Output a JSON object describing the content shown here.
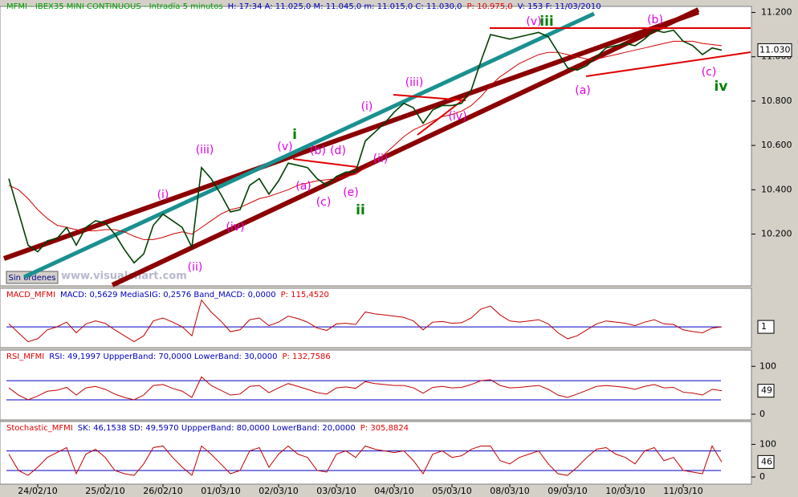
{
  "chart_data": {
    "type": "line",
    "header": [
      {
        "text": "MFMI - IBEX35 MINI CONTINUOUS - Intradía 5 minutos",
        "color": "#00a000"
      },
      {
        "text": "H: 17:34  A: 11.025,0  M: 11.045,0  m: 11.015,0  C: 11.030,0",
        "color": "#0000c0"
      },
      {
        "text": "P: 10.975,0",
        "color": "#e00000"
      },
      {
        "text": "V: 153  F: 11/03/2010",
        "color": "#0000c0"
      }
    ],
    "watermark": "www.visualchart.com",
    "button": "Sin órdenes",
    "last_label": "11.030",
    "categories": [
      null,
      null,
      null,
      "24/02/10",
      null,
      null,
      null,
      null,
      null,
      null,
      "25/02/10",
      null,
      null,
      null,
      null,
      null,
      "26/02/10",
      null,
      null,
      null,
      null,
      null,
      "01/03/10",
      null,
      null,
      null,
      null,
      null,
      "02/03/10",
      null,
      null,
      null,
      null,
      null,
      "03/03/10",
      null,
      null,
      null,
      null,
      null,
      "04/03/10",
      null,
      null,
      null,
      null,
      null,
      "05/03/10",
      null,
      null,
      null,
      null,
      null,
      "08/03/10",
      null,
      null,
      null,
      null,
      null,
      "09/03/10",
      null,
      null,
      null,
      null,
      null,
      "10/03/10",
      null,
      null,
      null,
      null,
      null,
      "11/03/10",
      null,
      null,
      null,
      null
    ],
    "ylim": [
      9970,
      11220
    ],
    "yticks": [
      {
        "value": 10200,
        "label": "10.200"
      },
      {
        "value": 10400,
        "label": "10.400"
      },
      {
        "value": 10600,
        "label": "10.600"
      },
      {
        "value": 10800,
        "label": "10.800"
      },
      {
        "value": 11000,
        "label": "11.000"
      },
      {
        "value": 11200,
        "label": "11.200"
      }
    ],
    "series": [
      {
        "name": "MFMI",
        "color": "#004000",
        "values": [
          10450,
          10300,
          10150,
          10120,
          10170,
          10180,
          10230,
          10150,
          10230,
          10260,
          10250,
          10200,
          10130,
          10070,
          10110,
          10240,
          10290,
          10260,
          10230,
          10140,
          10500,
          10450,
          10380,
          10300,
          10310,
          10420,
          10450,
          10380,
          10440,
          10520,
          10510,
          10500,
          10450,
          10420,
          10460,
          10480,
          10480,
          10620,
          10660,
          10700,
          10750,
          10790,
          10770,
          10700,
          10760,
          10780,
          10780,
          10790,
          10850,
          10980,
          11100,
          11090,
          11080,
          11090,
          11100,
          11110,
          11090,
          11020,
          10950,
          10940,
          10960,
          11000,
          11040,
          11050,
          11060,
          11050,
          11080,
          11120,
          11110,
          11120,
          11070,
          11050,
          11010,
          11040,
          11030
        ]
      },
      {
        "name": "MA",
        "color": "#d00000",
        "values": [
          10420,
          10400,
          10360,
          10310,
          10270,
          10240,
          10230,
          10220,
          10215,
          10215,
          10220,
          10220,
          10210,
          10190,
          10175,
          10175,
          10185,
          10200,
          10210,
          10200,
          10230,
          10260,
          10290,
          10310,
          10320,
          10340,
          10360,
          10370,
          10385,
          10400,
          10420,
          10430,
          10440,
          10445,
          10450,
          10460,
          10470,
          10500,
          10530,
          10560,
          10600,
          10640,
          10670,
          10690,
          10710,
          10730,
          10740,
          10755,
          10780,
          10820,
          10870,
          10910,
          10940,
          10970,
          10990,
          11010,
          11020,
          11020,
          11010,
          11000,
          10990,
          10990,
          11000,
          11010,
          11020,
          11030,
          11040,
          11050,
          11060,
          11070,
          11070,
          11070,
          11060,
          11055,
          11050
        ]
      }
    ],
    "annotations": [
      {
        "text": "(iii)",
        "color": "#e000e0"
      },
      {
        "text": "(i)",
        "color": "#e000e0"
      },
      {
        "text": "(ii)",
        "color": "#e000e0"
      },
      {
        "text": "(iv)",
        "color": "#e000e0"
      },
      {
        "text": "(v)",
        "color": "#e000e0"
      },
      {
        "text": "i",
        "color": "#008000"
      },
      {
        "text": "(b)",
        "color": "#e000e0"
      },
      {
        "text": "(d)",
        "color": "#e000e0"
      },
      {
        "text": "(a)",
        "color": "#e000e0"
      },
      {
        "text": "(c)",
        "color": "#e000e0"
      },
      {
        "text": "(e)",
        "color": "#e000e0"
      },
      {
        "text": "ii",
        "color": "#008000"
      },
      {
        "text": "(i)",
        "color": "#e000e0"
      },
      {
        "text": "(iii)",
        "color": "#e000e0"
      },
      {
        "text": "(ii)",
        "color": "#e000e0"
      },
      {
        "text": "(iv)",
        "color": "#e000e0"
      },
      {
        "text": "(v)",
        "color": "#e000e0"
      },
      {
        "text": "iii",
        "color": "#008000"
      },
      {
        "text": "(a)",
        "color": "#e000e0"
      },
      {
        "text": "(b)",
        "color": "#e000e0"
      },
      {
        "text": "(c)",
        "color": "#e000e0"
      },
      {
        "text": "iv",
        "color": "#008000"
      }
    ],
    "indicators": [
      {
        "header": [
          {
            "text": "MACD_MFMI",
            "color": "#e00000"
          },
          {
            "text": "MACD: 0,5629  MediaSIG: 0,2576  Band_MACD: 0,0000",
            "color": "#0000c0"
          },
          {
            "text": "P: 115,4520",
            "color": "#e00000"
          }
        ],
        "box": "1",
        "color": "#c00000",
        "ylim": [
          -35,
          65
        ],
        "levels": [
          0
        ],
        "yticks": [],
        "values": [
          5,
          -10,
          -25,
          -20,
          -5,
          0,
          8,
          -10,
          5,
          10,
          6,
          -5,
          -15,
          -25,
          -15,
          10,
          15,
          8,
          0,
          -15,
          45,
          25,
          10,
          -8,
          -5,
          12,
          15,
          2,
          8,
          18,
          14,
          8,
          -2,
          -6,
          5,
          6,
          4,
          25,
          22,
          20,
          18,
          16,
          10,
          -5,
          8,
          9,
          6,
          7,
          15,
          30,
          35,
          20,
          10,
          8,
          10,
          12,
          5,
          -10,
          -20,
          -15,
          -5,
          5,
          10,
          8,
          6,
          2,
          8,
          12,
          5,
          4,
          -5,
          -8,
          -10,
          -2,
          0
        ]
      },
      {
        "header": [
          {
            "text": "RSI_MFMI",
            "color": "#e00000"
          },
          {
            "text": "RSI: 49,1997  UppperBand: 70,0000  LowerBand: 30,0000",
            "color": "#0000c0"
          },
          {
            "text": "P: 132,7586",
            "color": "#e00000"
          }
        ],
        "box": "49",
        "color": "#c00000",
        "ylim": [
          -12,
          134
        ],
        "levels": [
          70,
          30
        ],
        "yticks": [
          0,
          100
        ],
        "values": [
          55,
          40,
          30,
          38,
          48,
          50,
          56,
          40,
          55,
          58,
          52,
          42,
          35,
          30,
          40,
          60,
          62,
          54,
          48,
          35,
          78,
          60,
          50,
          40,
          42,
          58,
          60,
          45,
          55,
          64,
          58,
          52,
          45,
          42,
          55,
          57,
          54,
          68,
          64,
          62,
          60,
          60,
          55,
          44,
          56,
          58,
          55,
          56,
          62,
          70,
          72,
          60,
          55,
          56,
          58,
          60,
          52,
          40,
          35,
          42,
          50,
          58,
          60,
          58,
          56,
          52,
          58,
          62,
          55,
          56,
          46,
          44,
          40,
          52,
          49
        ]
      },
      {
        "header": [
          {
            "text": "Stochastic_MFMI",
            "color": "#e00000"
          },
          {
            "text": "SK: 46,1538  SD: 49,5970  UppperBand: 80,0000  LowerBand: 20,0000",
            "color": "#0000c0"
          },
          {
            "text": "P: 305,8824",
            "color": "#e00000"
          }
        ],
        "box": "46",
        "color": "#c00000",
        "ylim": [
          -22,
          170
        ],
        "levels": [
          80,
          20
        ],
        "yticks": [
          0,
          100
        ],
        "values": [
          70,
          20,
          5,
          30,
          60,
          75,
          90,
          10,
          70,
          85,
          60,
          20,
          10,
          5,
          40,
          90,
          95,
          60,
          30,
          5,
          95,
          70,
          40,
          10,
          20,
          80,
          90,
          30,
          70,
          95,
          70,
          60,
          20,
          15,
          70,
          80,
          60,
          95,
          85,
          80,
          75,
          80,
          50,
          10,
          70,
          80,
          60,
          65,
          85,
          95,
          95,
          50,
          40,
          60,
          70,
          80,
          40,
          10,
          5,
          30,
          60,
          85,
          90,
          70,
          60,
          40,
          80,
          90,
          50,
          60,
          20,
          15,
          10,
          95,
          46
        ]
      }
    ]
  }
}
